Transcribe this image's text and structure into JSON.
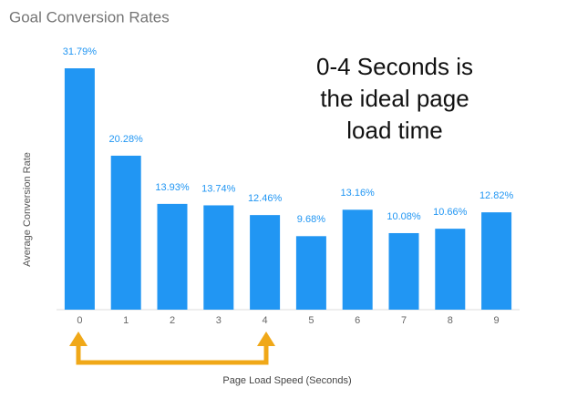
{
  "chart_data": {
    "type": "bar",
    "title": "Goal Conversion Rates",
    "y_label": "Average Conversion Rate",
    "x_label": "Page Load Speed (Seconds)",
    "annotation": [
      "0-4 Seconds is",
      "the ideal page",
      "load time"
    ],
    "categories": [
      "0",
      "1",
      "2",
      "3",
      "4",
      "5",
      "6",
      "7",
      "8",
      "9"
    ],
    "values": [
      31.79,
      20.28,
      13.93,
      13.74,
      12.46,
      9.68,
      13.16,
      10.08,
      10.66,
      12.82
    ],
    "value_labels": [
      "31.79%",
      "20.28%",
      "13.93%",
      "13.74%",
      "12.46%",
      "9.68%",
      "13.16%",
      "10.08%",
      "10.66%",
      "12.82%"
    ],
    "color": "#2196f3"
  }
}
